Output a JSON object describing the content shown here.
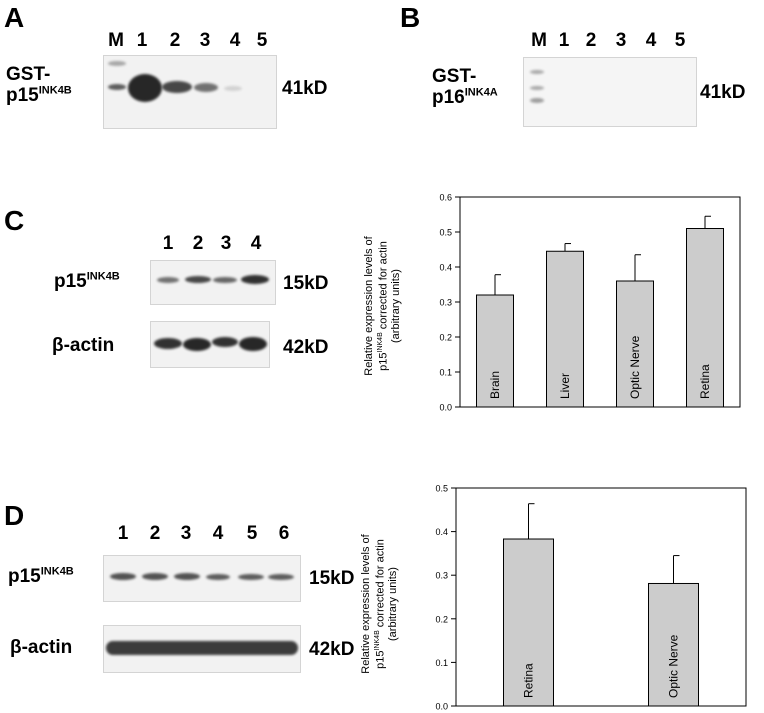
{
  "panels": {
    "A": {
      "letter": "A",
      "marker": "M",
      "lanes": [
        "1",
        "2",
        "3",
        "4",
        "5"
      ],
      "protein_prefix": "GST-",
      "protein_main": "p15",
      "protein_sup": "INK4B",
      "size": "41kD"
    },
    "B": {
      "letter": "B",
      "marker": "M",
      "lanes": [
        "1",
        "2",
        "3",
        "4",
        "5"
      ],
      "protein_prefix": "GST-",
      "protein_main": "p16",
      "protein_sup": "INK4A",
      "size": "41kD"
    },
    "C": {
      "letter": "C",
      "lanes": [
        "1",
        "2",
        "3",
        "4"
      ],
      "row1_main": "p15",
      "row1_sup": "INK4B",
      "row1_size": "15kD",
      "row2_label": "β-actin",
      "row2_size": "42kD"
    },
    "D": {
      "letter": "D",
      "lanes": [
        "1",
        "2",
        "3",
        "4",
        "5",
        "6"
      ],
      "row1_main": "p15",
      "row1_sup": "INK4B",
      "row1_size": "15kD",
      "row2_label": "β-actin",
      "row2_size": "42kD"
    }
  },
  "chart_data": [
    {
      "type": "bar",
      "categories": [
        "Brain",
        "Liver",
        "Optic Nerve",
        "Retina"
      ],
      "values": [
        0.32,
        0.445,
        0.36,
        0.51
      ],
      "errors": [
        0.058,
        0.022,
        0.075,
        0.035
      ],
      "ylabel_line1": "Relative expression levels of",
      "ylabel_line2_main": "p15",
      "ylabel_line2_sup": "INK4B",
      "ylabel_line2_rest": " corrected for actin",
      "ylabel_line3": "(arbitrary units)",
      "ylim": [
        0,
        0.6
      ],
      "yticks": [
        "0.0",
        "0.1",
        "0.2",
        "0.3",
        "0.4",
        "0.5",
        "0.6"
      ],
      "bar_color": "#cccccc",
      "grid": false
    },
    {
      "type": "bar",
      "categories": [
        "Retina",
        "Optic Nerve"
      ],
      "values": [
        0.383,
        0.281
      ],
      "errors": [
        0.081,
        0.064
      ],
      "ylabel_line1": "Relative expression levels of",
      "ylabel_line2_main": "p15",
      "ylabel_line2_sup": "INK4B",
      "ylabel_line2_rest": " corrected for actin",
      "ylabel_line3": "(arbitrary units)",
      "ylim": [
        0,
        0.5
      ],
      "yticks": [
        "0.0",
        "0.1",
        "0.2",
        "0.3",
        "0.4",
        "0.5"
      ],
      "bar_color": "#cccccc",
      "grid": false
    }
  ]
}
